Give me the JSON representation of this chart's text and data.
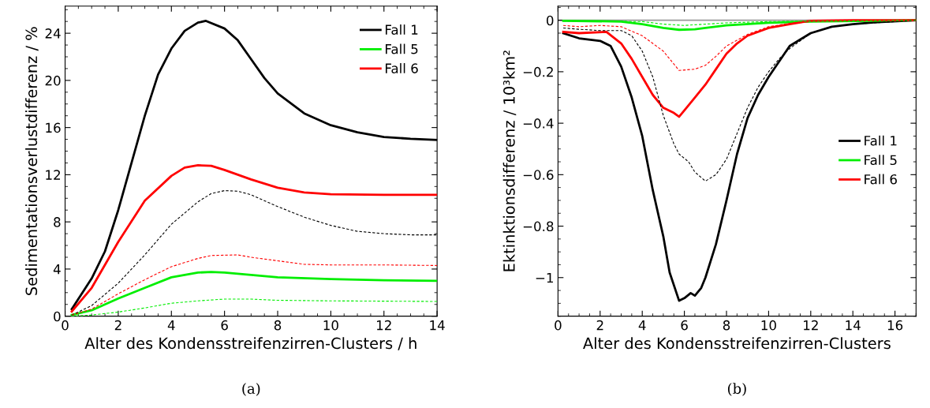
{
  "chart_data": [
    {
      "type": "line",
      "xlabel": "Alter des Kondensstreifenzirren-Clusters / h",
      "ylabel": "Sedimentationsverlustdifferenz / %",
      "annotations": [
        "(a)"
      ],
      "xlim": [
        0,
        14
      ],
      "xticks": [
        0,
        2,
        4,
        6,
        8,
        10,
        12,
        14
      ],
      "ylim": [
        0,
        26.3
      ],
      "yticks": [
        0,
        4,
        8,
        12,
        16,
        20,
        24
      ],
      "grid": false,
      "legend": "top right",
      "line_style": "solid",
      "marker": "none",
      "series": [
        {
          "name": "Fall 1",
          "color": "#000000",
          "x": [
            0.25,
            1,
            1.5,
            2,
            2.5,
            3,
            3.5,
            4,
            4.5,
            5,
            5.3,
            6,
            6.5,
            7,
            7.5,
            8,
            9,
            10,
            11,
            12,
            13,
            14
          ],
          "values": [
            0.6,
            3.2,
            5.5,
            9,
            13,
            17,
            20.5,
            22.7,
            24.2,
            24.9,
            25.05,
            24.4,
            23.4,
            21.8,
            20.2,
            18.9,
            17.2,
            16.2,
            15.6,
            15.2,
            15.05,
            14.95
          ]
        },
        {
          "name": "Fall 5",
          "color": "#00ee00",
          "x": [
            0.25,
            1,
            2,
            3,
            4,
            5,
            5.5,
            6,
            7,
            8,
            10,
            12,
            14
          ],
          "values": [
            0.1,
            0.5,
            1.5,
            2.4,
            3.3,
            3.7,
            3.75,
            3.7,
            3.5,
            3.3,
            3.15,
            3.05,
            3.0
          ]
        },
        {
          "name": "Fall 6",
          "color": "#ff0000",
          "x": [
            0.25,
            1,
            2,
            3,
            4,
            4.5,
            5,
            5.5,
            6,
            7,
            8,
            9,
            10,
            12,
            14
          ],
          "values": [
            0.4,
            2.4,
            6.3,
            9.8,
            11.9,
            12.6,
            12.8,
            12.75,
            12.4,
            11.6,
            10.9,
            10.5,
            10.35,
            10.3,
            10.3
          ]
        },
        {
          "color": "#000000",
          "line_style": "dashed",
          "x": [
            0.25,
            1,
            2,
            3,
            4,
            5,
            5.5,
            6,
            6.5,
            7,
            8,
            9,
            10,
            11,
            12,
            13,
            14
          ],
          "values": [
            0.1,
            0.9,
            2.8,
            5.2,
            7.8,
            9.7,
            10.4,
            10.65,
            10.6,
            10.3,
            9.3,
            8.4,
            7.7,
            7.2,
            7.0,
            6.9,
            6.9
          ]
        },
        {
          "color": "#ff0000",
          "line_style": "dashed",
          "x": [
            0.25,
            1,
            2,
            3,
            4,
            5,
            5.5,
            6.5,
            7,
            8,
            9,
            10,
            12,
            14
          ],
          "values": [
            0.1,
            0.6,
            1.9,
            3.1,
            4.2,
            4.9,
            5.15,
            5.2,
            5.0,
            4.7,
            4.4,
            4.35,
            4.35,
            4.3
          ]
        },
        {
          "color": "#00ee00",
          "line_style": "dashed",
          "x": [
            0.25,
            1,
            2,
            3,
            4,
            5,
            6,
            7,
            8,
            10,
            14
          ],
          "values": [
            0.0,
            0.1,
            0.35,
            0.7,
            1.1,
            1.3,
            1.45,
            1.45,
            1.35,
            1.3,
            1.25
          ]
        }
      ]
    },
    {
      "type": "line",
      "xlabel": "Alter des Kondensstreifenzirren-Clusters",
      "ylabel": "Ektinktionsdifferenz / 10³km²",
      "annotations": [
        "(b)"
      ],
      "xlim": [
        0,
        17
      ],
      "xticks": [
        0,
        2,
        4,
        6,
        8,
        10,
        12,
        14,
        16
      ],
      "ylim": [
        -1.15,
        0.055
      ],
      "yticks": [
        {
          "value": -1,
          "label": "−1"
        },
        {
          "value": -0.8,
          "label": "−0.8"
        },
        {
          "value": -0.6,
          "label": "−0.6"
        },
        {
          "value": -0.4,
          "label": "−0.4"
        },
        {
          "value": -0.2,
          "label": "−0.2"
        },
        0
      ],
      "grid": false,
      "legend": "right",
      "line_style": "solid",
      "marker": "none",
      "ref_lines": [
        {
          "axis": "y",
          "value": 0,
          "color": "#999999"
        }
      ],
      "series": [
        {
          "name": "Fall 1",
          "color": "#000000",
          "x": [
            0.25,
            1,
            2,
            2.5,
            3,
            3.5,
            4,
            4.5,
            5,
            5.3,
            5.75,
            6,
            6.3,
            6.5,
            6.8,
            7,
            7.5,
            8,
            8.5,
            9,
            9.5,
            10,
            11,
            12,
            13,
            14,
            15,
            17
          ],
          "values": [
            -0.05,
            -0.07,
            -0.08,
            -0.1,
            -0.18,
            -0.3,
            -0.45,
            -0.66,
            -0.84,
            -0.98,
            -1.09,
            -1.08,
            -1.06,
            -1.07,
            -1.04,
            -1.0,
            -0.87,
            -0.7,
            -0.52,
            -0.38,
            -0.29,
            -0.22,
            -0.1,
            -0.05,
            -0.025,
            -0.015,
            -0.008,
            0
          ]
        },
        {
          "name": "Fall 5",
          "color": "#00ee00",
          "x": [
            0.25,
            3,
            4,
            5,
            5.75,
            6.5,
            7,
            8,
            10,
            12,
            17
          ],
          "values": [
            -0.002,
            -0.005,
            -0.015,
            -0.03,
            -0.037,
            -0.035,
            -0.03,
            -0.02,
            -0.01,
            -0.005,
            0
          ]
        },
        {
          "name": "Fall 6",
          "color": "#ff0000",
          "x": [
            0.25,
            1,
            2.3,
            3,
            3.5,
            4,
            4.5,
            5,
            5.5,
            5.75,
            6,
            6.5,
            7,
            7.5,
            8,
            8.5,
            9,
            10,
            11,
            12,
            14,
            17
          ],
          "values": [
            -0.045,
            -0.05,
            -0.045,
            -0.09,
            -0.15,
            -0.22,
            -0.29,
            -0.34,
            -0.36,
            -0.375,
            -0.35,
            -0.3,
            -0.25,
            -0.19,
            -0.13,
            -0.09,
            -0.06,
            -0.03,
            -0.015,
            -0.002,
            0,
            0
          ]
        },
        {
          "color": "#000000",
          "line_style": "dashed",
          "x": [
            0.25,
            1,
            2,
            3,
            3.5,
            4,
            4.5,
            5,
            5.5,
            5.75,
            6.2,
            6.5,
            7,
            7.5,
            8,
            8.5,
            9,
            9.5,
            10,
            10.5,
            11,
            12,
            13,
            14,
            17
          ],
          "values": [
            -0.03,
            -0.035,
            -0.04,
            -0.04,
            -0.06,
            -0.12,
            -0.22,
            -0.37,
            -0.48,
            -0.52,
            -0.55,
            -0.59,
            -0.625,
            -0.6,
            -0.54,
            -0.44,
            -0.34,
            -0.26,
            -0.2,
            -0.15,
            -0.11,
            -0.05,
            -0.025,
            -0.015,
            0
          ]
        },
        {
          "color": "#ff0000",
          "line_style": "dashed",
          "x": [
            0.25,
            1,
            2,
            3,
            4,
            5,
            5.5,
            5.75,
            6.5,
            7,
            7.5,
            8,
            9,
            10,
            11,
            12,
            17
          ],
          "values": [
            -0.02,
            -0.025,
            -0.02,
            -0.025,
            -0.06,
            -0.12,
            -0.17,
            -0.195,
            -0.19,
            -0.175,
            -0.14,
            -0.1,
            -0.055,
            -0.025,
            -0.012,
            -0.003,
            0
          ]
        },
        {
          "color": "#00ee00",
          "line_style": "dashed",
          "x": [
            0.25,
            4,
            5,
            6,
            7,
            8,
            10,
            17
          ],
          "values": [
            -0.003,
            -0.005,
            -0.015,
            -0.02,
            -0.015,
            -0.01,
            -0.005,
            0
          ]
        }
      ]
    }
  ]
}
